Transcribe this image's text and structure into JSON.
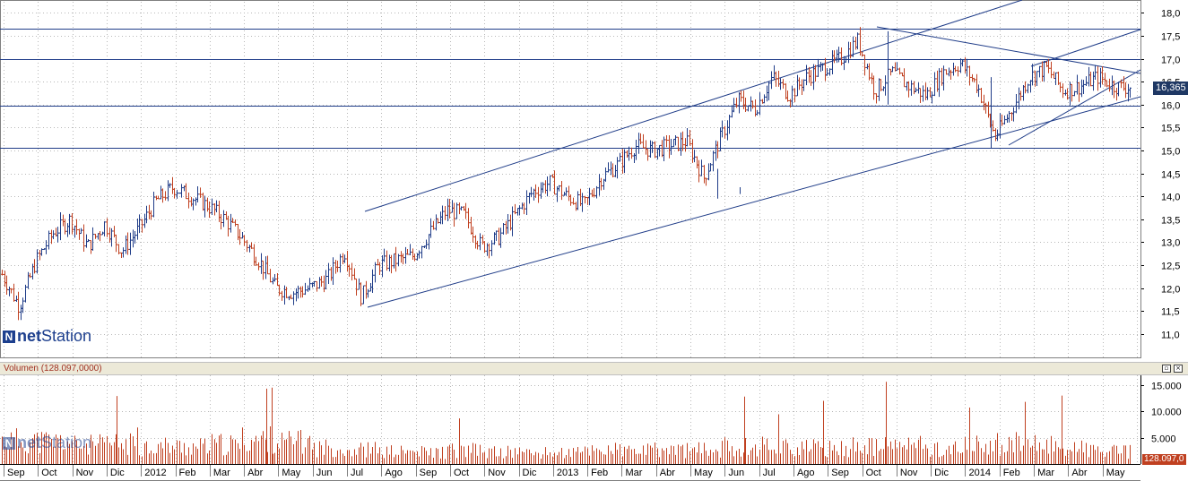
{
  "window": {
    "volume_title": "Volumen (128.097,0000)",
    "logo_main": "net",
    "logo_rest": "Station",
    "logo_mark": "N",
    "price_flag": "16,365",
    "volume_flag": "128.097,0",
    "accent_price": "#1f3864",
    "accent_volume": "#c04020"
  },
  "chart_data": [
    {
      "type": "line",
      "subtype": "ohlc-bars",
      "grid": true,
      "ylim": [
        10.5,
        18.1
      ],
      "y_ticks": [
        "18,0",
        "17,5",
        "17,0",
        "16,5",
        "16,0",
        "15,5",
        "15,0",
        "14,5",
        "14,0",
        "13,5",
        "13,0",
        "12,5",
        "12,0",
        "11,5",
        "11,0"
      ],
      "x_labels": [
        "Sep",
        "Oct",
        "Nov",
        "Dic",
        "2012",
        "Feb",
        "Mar",
        "Abr",
        "May",
        "Jun",
        "Jul",
        "Ago",
        "Sep",
        "Oct",
        "Nov",
        "Dic",
        "2013",
        "Feb",
        "Mar",
        "Abr",
        "May",
        "Jun",
        "Jul",
        "Ago",
        "Sep",
        "Oct",
        "Nov",
        "Dic",
        "2014",
        "Feb",
        "Mar",
        "Abr",
        "May"
      ],
      "x": [
        "2011-09",
        "2011-09-15",
        "2011-10-01",
        "2011-10-15",
        "2011-11-01",
        "2011-11-15",
        "2011-12-01",
        "2011-12-15",
        "2012-01-01",
        "2012-01-15",
        "2012-02-01",
        "2012-02-15",
        "2012-03-01",
        "2012-03-15",
        "2012-04-01",
        "2012-04-15",
        "2012-05-01",
        "2012-05-15",
        "2012-06-01",
        "2012-06-15",
        "2012-07-01",
        "2012-07-15",
        "2012-08-01",
        "2012-08-15",
        "2012-09-01",
        "2012-09-15",
        "2012-10-01",
        "2012-10-15",
        "2012-11-01",
        "2012-11-15",
        "2012-12-01",
        "2012-12-15",
        "2013-01-01",
        "2013-01-15",
        "2013-02-01",
        "2013-02-15",
        "2013-03-01",
        "2013-03-15",
        "2013-04-01",
        "2013-04-15",
        "2013-05-01",
        "2013-05-15",
        "2013-06-01",
        "2013-06-15",
        "2013-07-01",
        "2013-07-15",
        "2013-08-01",
        "2013-08-15",
        "2013-09-01",
        "2013-09-15",
        "2013-10-01",
        "2013-10-15",
        "2013-11-01",
        "2013-11-15",
        "2013-12-01",
        "2013-12-15",
        "2014-01-01",
        "2014-01-15",
        "2014-02-01",
        "2014-02-15",
        "2014-03-01",
        "2014-03-15",
        "2014-04-01",
        "2014-04-15",
        "2014-05-01",
        "2014-05-15",
        "2014-06-01"
      ],
      "series": [
        {
          "values": [
            12.3,
            11.6,
            12.6,
            13.2,
            13.5,
            12.9,
            13.4,
            12.8,
            13.3,
            13.9,
            14.2,
            14.0,
            13.8,
            13.5,
            13.1,
            12.6,
            12.0,
            11.9,
            12.0,
            12.2,
            12.8,
            11.8,
            12.5,
            12.6,
            12.7,
            13.2,
            13.7,
            13.6,
            12.9,
            13.1,
            13.6,
            14.1,
            14.3,
            14.0,
            13.8,
            14.4,
            14.7,
            15.1,
            15.0,
            15.1,
            15.2,
            14.4,
            15.3,
            16.1,
            15.9,
            16.6,
            16.2,
            16.6,
            16.8,
            17.0,
            17.4,
            16.3,
            16.7,
            16.4,
            16.2,
            16.7,
            16.9,
            16.4,
            15.3,
            15.9,
            16.6,
            16.8,
            16.3,
            16.4,
            16.6,
            16.4,
            16.365
          ]
        }
      ]
    },
    {
      "type": "bar",
      "ylim": [
        0,
        16500
      ],
      "y_ticks": [
        "15.000",
        "10.000",
        "5.000"
      ],
      "x_labels": [
        "Sep",
        "Oct",
        "Nov",
        "Dic",
        "2012",
        "Feb",
        "Mar",
        "Abr",
        "May",
        "Jun",
        "Jul",
        "Ago",
        "Sep",
        "Oct",
        "Nov",
        "Dic",
        "2013",
        "Feb",
        "Mar",
        "Abr",
        "May",
        "Jun",
        "Jul",
        "Ago",
        "Sep",
        "Oct",
        "Nov",
        "Dic",
        "2014",
        "Feb",
        "Mar",
        "Abr",
        "May"
      ],
      "x": [
        "2011-09",
        "2011-10",
        "2011-11",
        "2011-12",
        "2012-01",
        "2012-02",
        "2012-03",
        "2012-04",
        "2012-05",
        "2012-06",
        "2012-07",
        "2012-08",
        "2012-09",
        "2012-10",
        "2012-11",
        "2012-12",
        "2013-01",
        "2013-02",
        "2013-03",
        "2013-04",
        "2013-05",
        "2013-06",
        "2013-07",
        "2013-08",
        "2013-09",
        "2013-10",
        "2013-11",
        "2013-12",
        "2014-01",
        "2014-02",
        "2014-03",
        "2014-04",
        "2014-05"
      ],
      "series": [
        {
          "name": "Volumen",
          "values": [
            5200,
            5000,
            4200,
            4400,
            4000,
            3800,
            4300,
            5400,
            4800,
            3600,
            3200,
            2700,
            2600,
            3000,
            2600,
            2400,
            2500,
            3200,
            2900,
            3100,
            3100,
            3800,
            4100,
            3500,
            3400,
            3800,
            4200,
            3300,
            4000,
            4500,
            4200,
            3400,
            2700
          ]
        }
      ]
    }
  ]
}
